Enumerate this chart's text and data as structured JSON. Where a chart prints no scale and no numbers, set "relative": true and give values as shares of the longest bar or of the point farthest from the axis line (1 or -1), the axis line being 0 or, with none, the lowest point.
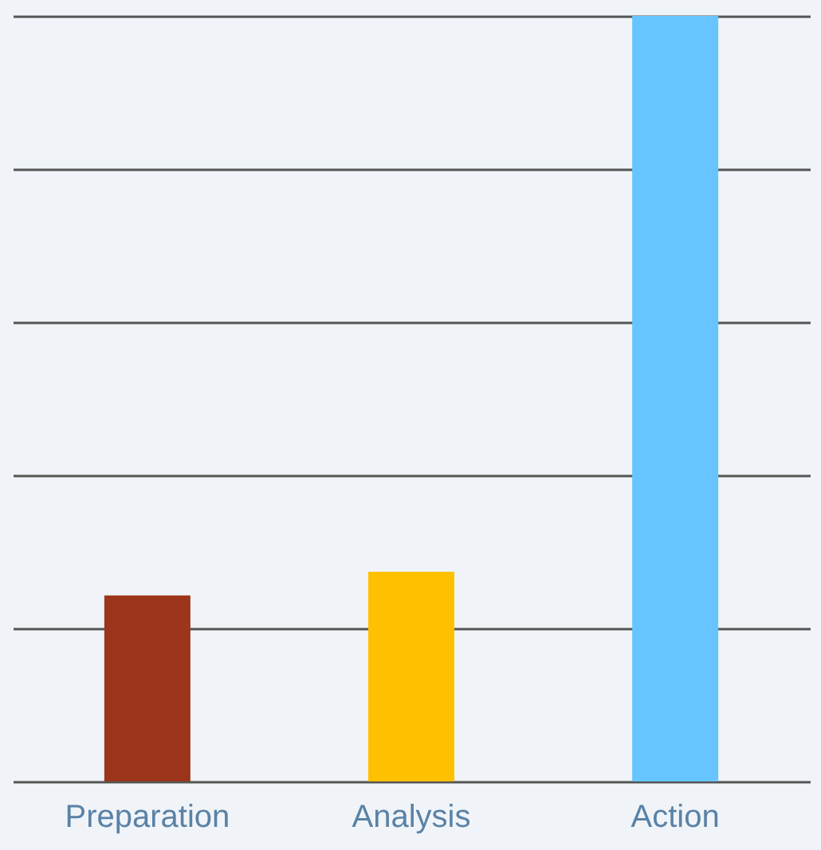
{
  "chart_data": {
    "type": "bar",
    "relative": true,
    "categories": [
      "Preparation",
      "Analysis",
      "Action"
    ],
    "values": [
      0.243,
      0.274,
      1
    ],
    "colors": [
      "#9c351b",
      "#ffc000",
      "#66c5ff"
    ],
    "grid": "y"
  }
}
